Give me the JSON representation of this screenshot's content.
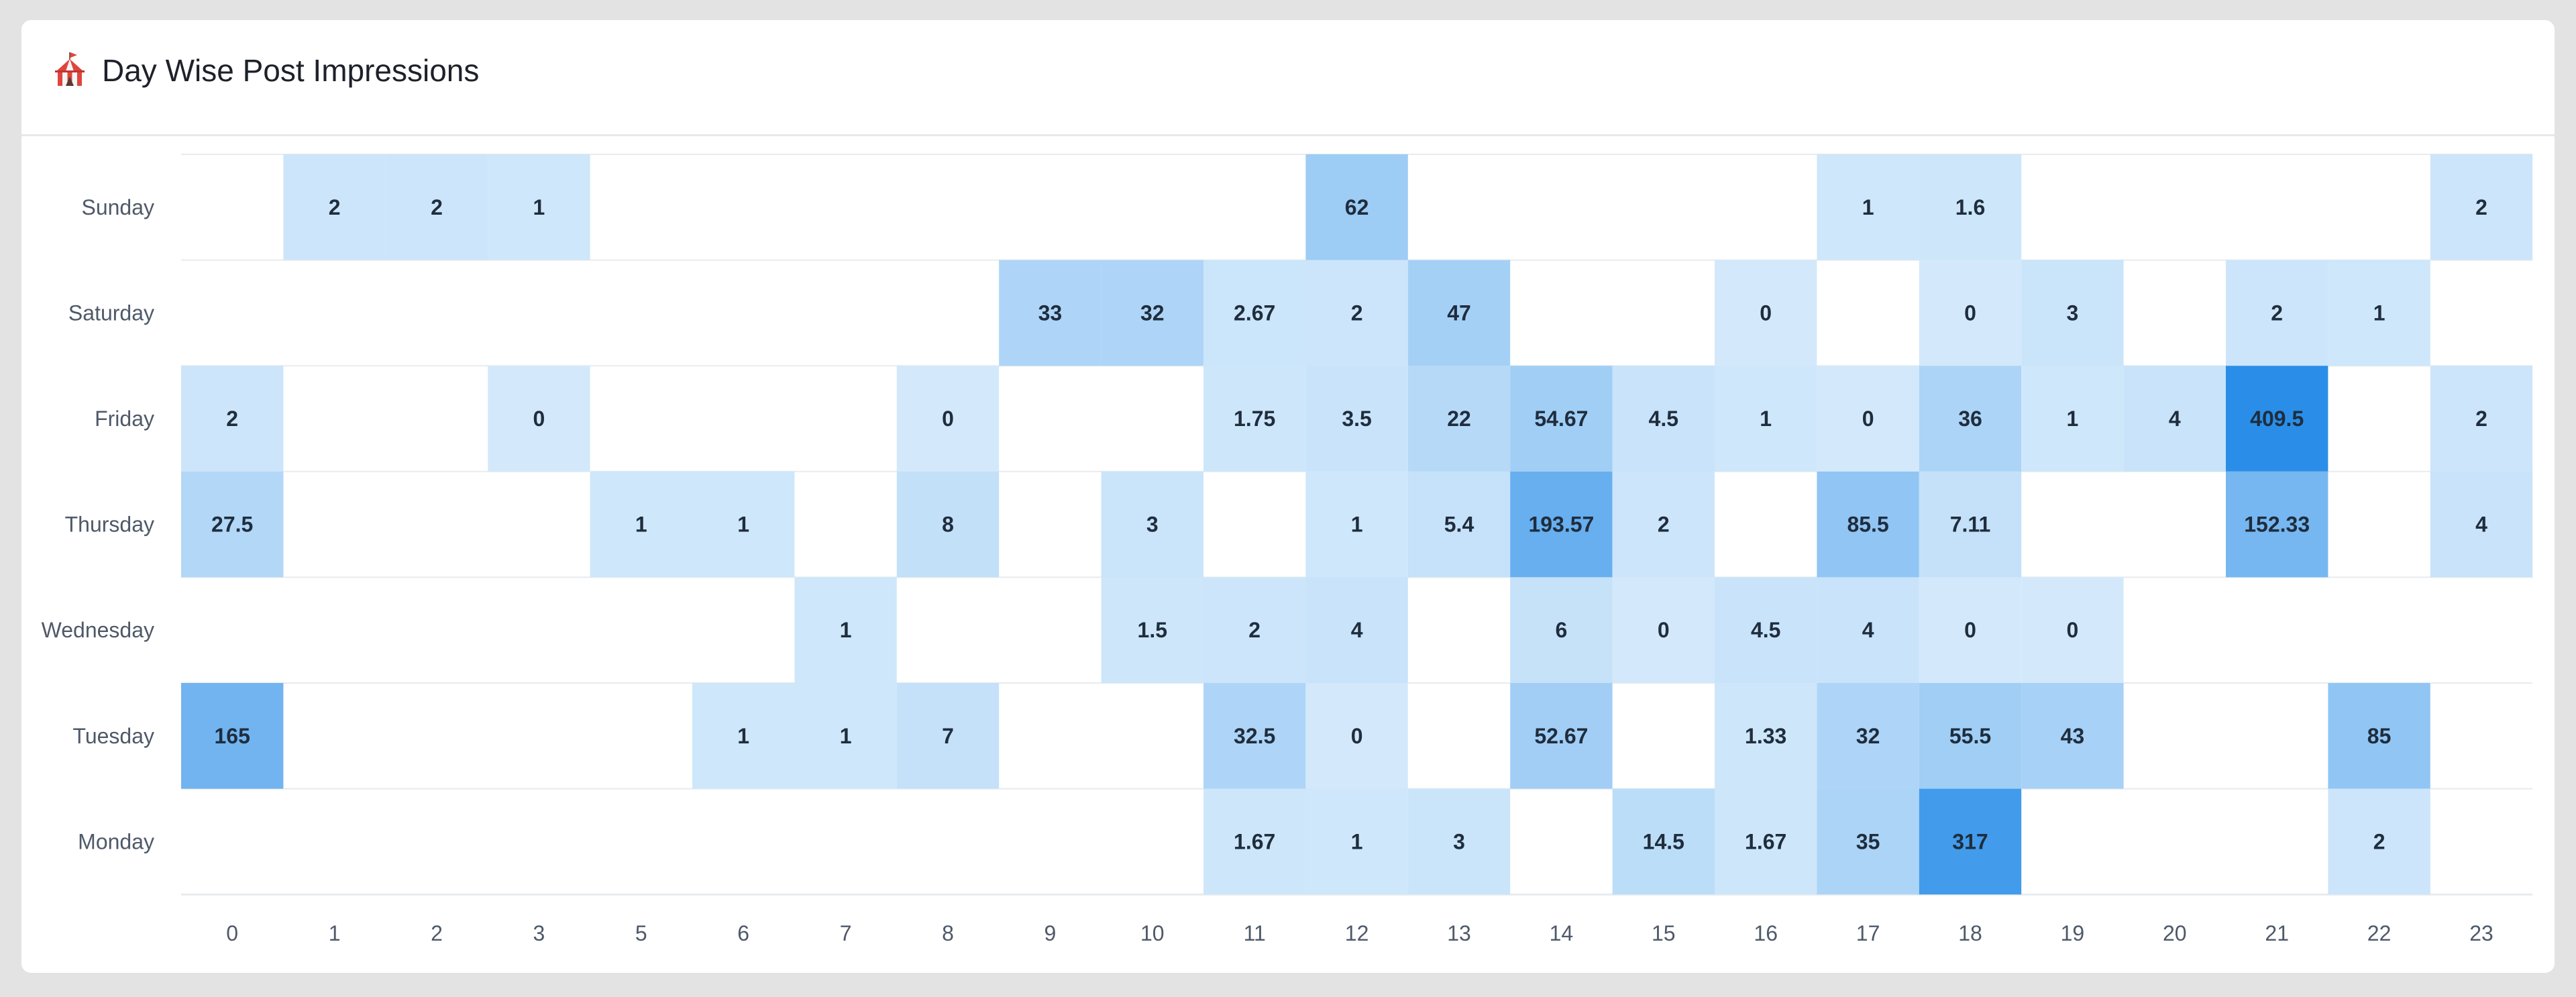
{
  "header": {
    "title": "Day Wise Post Impressions",
    "icon": "circus-tent-icon"
  },
  "colors": {
    "empty": "#ffffff",
    "low": "#d3e9fb",
    "high": "#2a8ee8",
    "grid": "#e8ebee",
    "text": "#1f2d3d",
    "axis_text": "#4e5969"
  },
  "chart_data": {
    "type": "heatmap",
    "title": "Day Wise Post Impressions",
    "xlabel": "",
    "ylabel": "",
    "x": [
      "0",
      "1",
      "2",
      "3",
      "5",
      "6",
      "7",
      "8",
      "9",
      "10",
      "11",
      "12",
      "13",
      "14",
      "15",
      "16",
      "17",
      "18",
      "19",
      "20",
      "21",
      "22",
      "23"
    ],
    "y": [
      "Sunday",
      "Saturday",
      "Friday",
      "Thursday",
      "Wednesday",
      "Tuesday",
      "Monday"
    ],
    "values": [
      [
        null,
        2,
        2,
        1,
        null,
        null,
        null,
        null,
        null,
        null,
        null,
        62,
        null,
        null,
        null,
        null,
        1,
        1.6,
        null,
        null,
        null,
        null,
        2
      ],
      [
        null,
        null,
        null,
        null,
        null,
        null,
        null,
        null,
        33,
        32,
        2.67,
        2,
        47,
        null,
        null,
        0,
        null,
        0,
        3,
        null,
        2,
        1,
        null
      ],
      [
        2,
        null,
        null,
        0,
        null,
        null,
        null,
        0,
        null,
        null,
        1.75,
        3.5,
        22,
        54.67,
        4.5,
        1,
        0,
        36,
        1,
        4,
        409.5,
        null,
        2
      ],
      [
        27.5,
        null,
        null,
        null,
        1,
        1,
        null,
        8,
        null,
        3,
        null,
        1,
        5.4,
        193.57,
        2,
        null,
        85.5,
        7.11,
        null,
        null,
        152.33,
        null,
        4
      ],
      [
        null,
        null,
        null,
        null,
        null,
        null,
        1,
        null,
        null,
        1.5,
        2,
        4,
        null,
        6,
        0,
        4.5,
        4,
        0,
        0,
        null,
        null,
        null,
        null
      ],
      [
        165,
        null,
        null,
        null,
        null,
        1,
        1,
        7,
        null,
        null,
        32.5,
        0,
        null,
        52.67,
        null,
        1.33,
        32,
        55.5,
        43,
        null,
        null,
        85,
        null
      ],
      [
        null,
        null,
        null,
        null,
        null,
        null,
        null,
        null,
        null,
        null,
        1.67,
        1,
        3,
        null,
        14.5,
        1.67,
        35,
        317,
        null,
        null,
        null,
        2,
        null
      ]
    ],
    "grid": true,
    "legend": "none"
  }
}
